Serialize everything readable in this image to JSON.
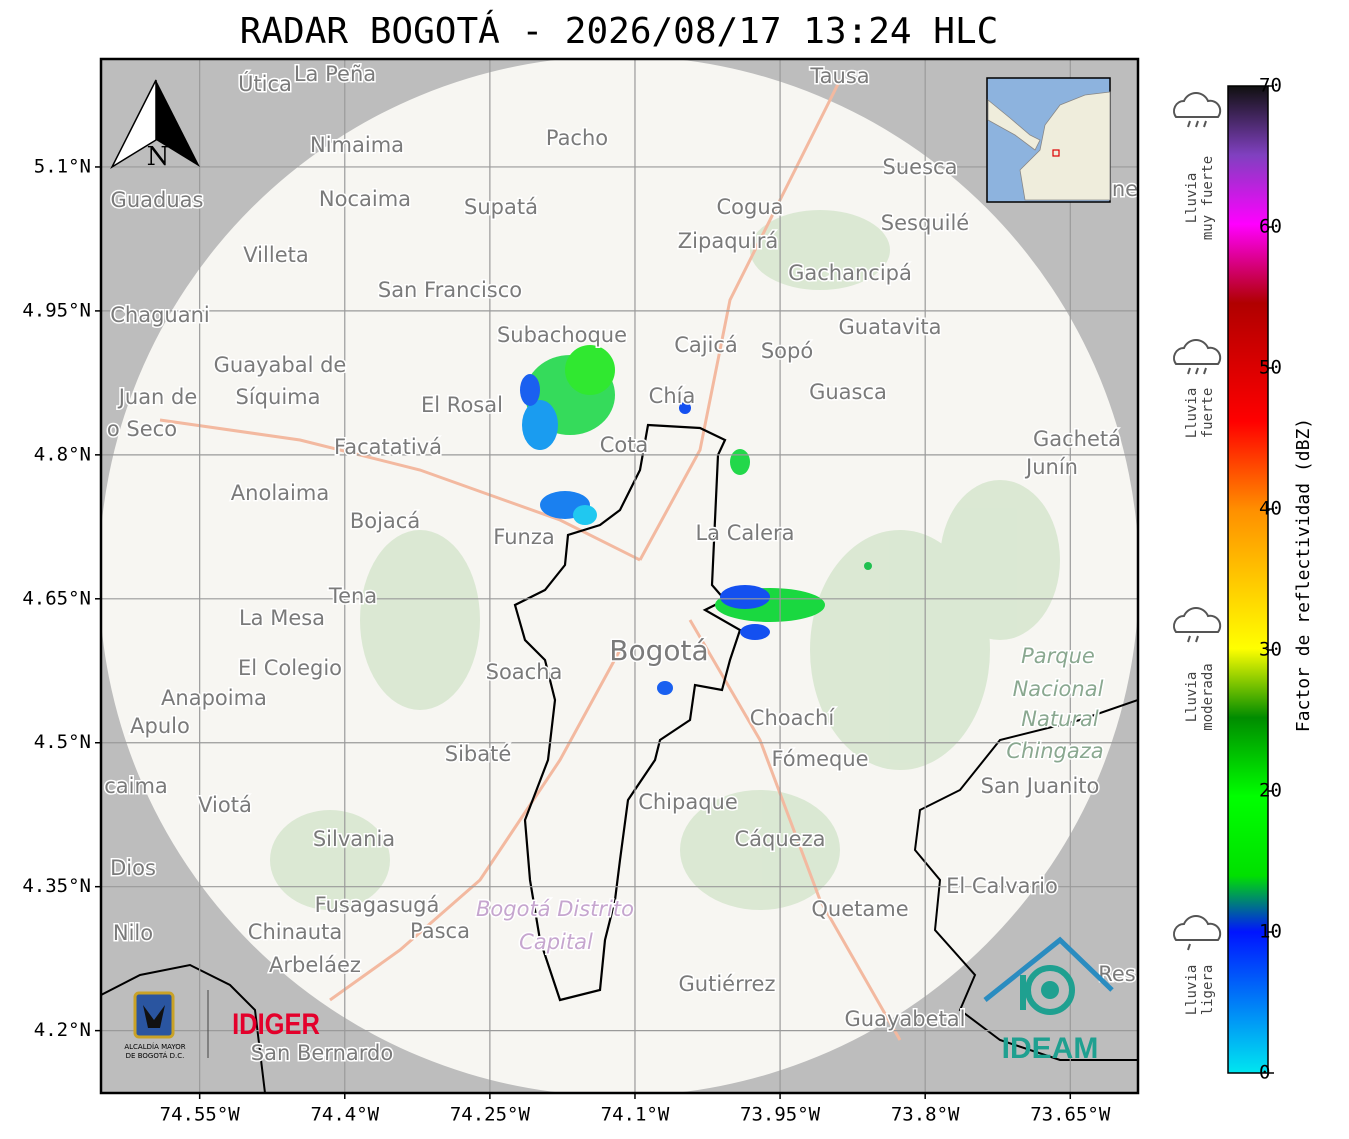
{
  "title": "RADAR BOGOTÁ - 2026/08/17 13:24 HLC",
  "map": {
    "xlim": [
      -74.652,
      -73.58
    ],
    "ylim": [
      4.135,
      5.2125
    ],
    "xticks": [
      {
        "value": -74.55,
        "label": "74.55°W"
      },
      {
        "value": -74.4,
        "label": "74.4°W"
      },
      {
        "value": -74.25,
        "label": "74.25°W"
      },
      {
        "value": -74.1,
        "label": "74.1°W"
      },
      {
        "value": -73.95,
        "label": "73.95°W"
      },
      {
        "value": -73.8,
        "label": "73.8°W"
      },
      {
        "value": -73.65,
        "label": "73.65°W"
      }
    ],
    "yticks": [
      {
        "value": 4.2,
        "label": "4.2°N"
      },
      {
        "value": 4.35,
        "label": "4.35°N"
      },
      {
        "value": 4.5,
        "label": "4.5°N"
      },
      {
        "value": 4.65,
        "label": "4.65°N"
      },
      {
        "value": 4.8,
        "label": "4.8°N"
      },
      {
        "value": 4.95,
        "label": "4.95°N"
      },
      {
        "value": 5.1,
        "label": "5.1°N"
      }
    ],
    "places": [
      "Útica",
      "La Peña",
      "Tausa",
      "Pacho",
      "Nimaima",
      "Guaduas",
      "Nocaima",
      "Supatá",
      "Cogua",
      "Suesca",
      "Sesquilé",
      "Zipaquirá",
      "Villeta",
      "Gachancipá",
      "San Francisco",
      "Chaguani",
      "Guatavita",
      "Subachoque",
      "Cajicá",
      "Sopó",
      "Guayabal de",
      "Síquima",
      "Juan de",
      "Guasca",
      "El Rosal",
      "Chía",
      "o Seco",
      "Cota",
      "Facatativá",
      "Gachetá",
      "Junín",
      "Anolaima",
      "Bojacá",
      "La Calera",
      "Funza",
      "Tena",
      "La Mesa",
      "Bogotá",
      "El Colegio",
      "Soacha",
      "Anapoima",
      "Apulo",
      "Choachí",
      "Sibaté",
      "Fómeque",
      "San Juanito",
      "caima",
      "Viotá",
      "Chipaque",
      "Silvania",
      "Cáqueza",
      "Dios",
      "El Calvario",
      "Fusagasugá",
      "Quetame",
      "Nilo",
      "Chinauta",
      "Pasca",
      "Arbeláez",
      "Res",
      "Gutiérrez",
      "Guayabetal",
      "San Bernardo",
      "ne"
    ],
    "park": [
      "Parque",
      "Nacional",
      "Natural",
      "Chingaza"
    ],
    "district": [
      "Bogotá Distrito",
      "Capital"
    ],
    "north": "N"
  },
  "colorbar": {
    "label": "Factor de reflectividad (dBZ)",
    "lim": [
      0,
      70
    ],
    "ticks": [
      0,
      10,
      20,
      30,
      40,
      50,
      60,
      70
    ]
  },
  "legend": [
    [
      "Lluvia",
      "muy fuerte"
    ],
    [
      "Lluvia",
      "fuerte"
    ],
    [
      "Lluvia",
      "moderada"
    ],
    [
      "Lluvia",
      "ligera"
    ]
  ],
  "logos": {
    "alcaldia": [
      "ALCALDÍA MAYOR",
      "DE BOGOTÁ D.C."
    ],
    "idiger": "IDIGER",
    "ideam": "IDEAM"
  }
}
